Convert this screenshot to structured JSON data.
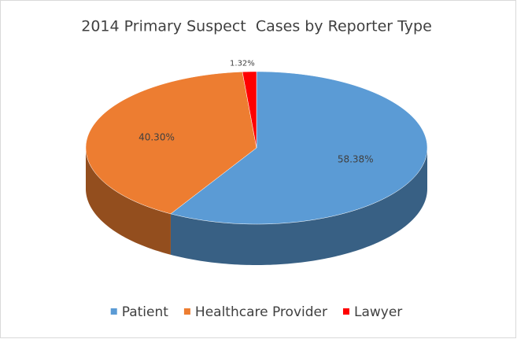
{
  "chart_data": {
    "type": "pie",
    "title": "2014 Primary Suspect  Cases by Reporter Type",
    "categories": [
      "Patient",
      "Healthcare Provider",
      "Lawyer"
    ],
    "values": [
      58.38,
      40.3,
      1.32
    ],
    "value_labels": [
      "58.38%",
      "40.30%",
      "1.32%"
    ],
    "colors": [
      "#5b9bd5",
      "#ed7d31",
      "#ff0000"
    ],
    "legend": "bottom"
  }
}
